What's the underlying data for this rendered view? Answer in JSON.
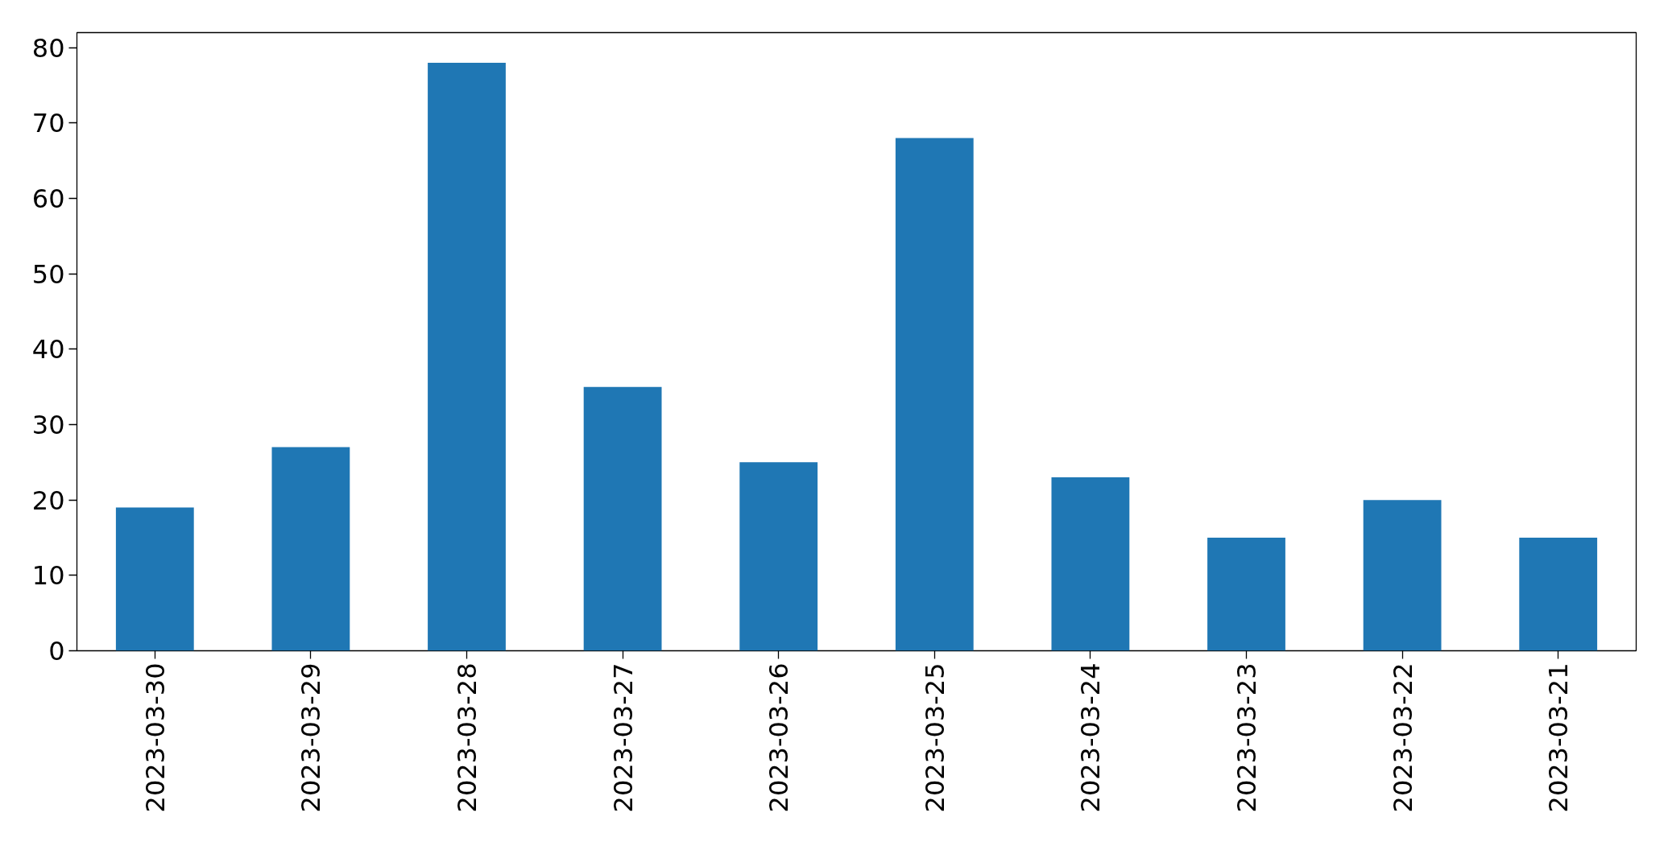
{
  "chart_data": {
    "type": "bar",
    "categories": [
      "2023-03-30",
      "2023-03-29",
      "2023-03-28",
      "2023-03-27",
      "2023-03-26",
      "2023-03-25",
      "2023-03-24",
      "2023-03-23",
      "2023-03-22",
      "2023-03-21"
    ],
    "values": [
      19,
      27,
      78,
      35,
      25,
      68,
      23,
      15,
      20,
      15
    ],
    "color": "#1f77b4",
    "ylim": [
      0,
      82
    ],
    "yticks": [
      0,
      10,
      20,
      30,
      40,
      50,
      60,
      70,
      80
    ],
    "grid": false
  }
}
